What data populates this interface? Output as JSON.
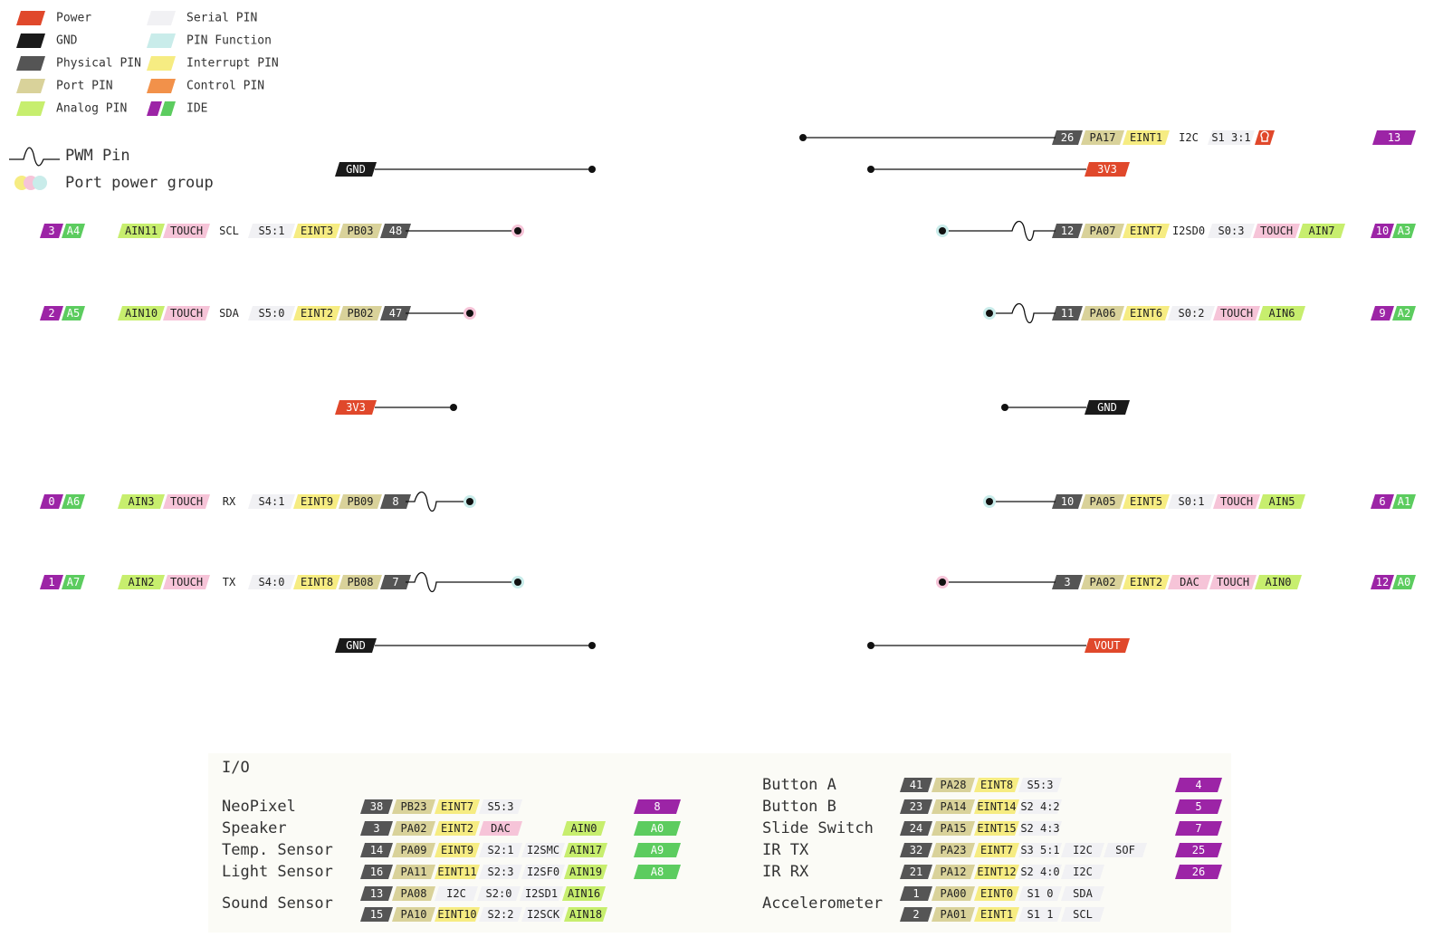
{
  "colors": {
    "power": "#e0482b",
    "gnd": "#1a1a1a",
    "physical": "#555555",
    "port": "#d9d29a",
    "analog": "#c7ee6e",
    "serial": "#f1f1f4",
    "pinfunc": "#c9ecea",
    "interrupt": "#f6ec82",
    "control": "#f2914a",
    "ide_purple": "#9c24a6",
    "ide_green": "#5ccc5f",
    "touch": "#f6c4d8",
    "dac": "#f6c4d8",
    "line": "#111111"
  },
  "legend": {
    "items": [
      {
        "label": "Power",
        "color": "power"
      },
      {
        "label": "GND",
        "color": "gnd"
      },
      {
        "label": "Physical PIN",
        "color": "physical"
      },
      {
        "label": "Port PIN",
        "color": "port"
      },
      {
        "label": "Analog PIN",
        "color": "analog"
      },
      {
        "label": "Serial PIN",
        "color": "serial"
      },
      {
        "label": "PIN Function",
        "color": "pinfunc"
      },
      {
        "label": "Interrupt PIN",
        "color": "interrupt"
      },
      {
        "label": "Control PIN",
        "color": "control"
      },
      {
        "label": "IDE",
        "color": "ide"
      }
    ],
    "pwm_label": "PWM Pin",
    "group_label": "Port power group"
  },
  "left_pins": [
    {
      "type": "gnd",
      "label": "GND"
    },
    {
      "type": "pin",
      "pwm": false,
      "end": "pink",
      "cells": [
        {
          "t": "ide_purple",
          "v": "3"
        },
        {
          "t": "ide_green",
          "v": "A4"
        },
        {
          "t": "analog",
          "v": "AIN11"
        },
        {
          "t": "touch",
          "v": "TOUCH"
        },
        {
          "t": "text",
          "v": "SCL"
        },
        {
          "t": "serial",
          "v": "S5:1"
        },
        {
          "t": "interrupt",
          "v": "EINT3"
        },
        {
          "t": "port",
          "v": "PB03"
        },
        {
          "t": "physical",
          "v": "48"
        }
      ]
    },
    {
      "type": "pin",
      "pwm": false,
      "end": "pink",
      "cells": [
        {
          "t": "ide_purple",
          "v": "2"
        },
        {
          "t": "ide_green",
          "v": "A5"
        },
        {
          "t": "analog",
          "v": "AIN10"
        },
        {
          "t": "touch",
          "v": "TOUCH"
        },
        {
          "t": "text",
          "v": "SDA"
        },
        {
          "t": "serial",
          "v": "S5:0"
        },
        {
          "t": "interrupt",
          "v": "EINT2"
        },
        {
          "t": "port",
          "v": "PB02"
        },
        {
          "t": "physical",
          "v": "47"
        }
      ]
    },
    {
      "type": "power",
      "label": "3V3"
    },
    {
      "type": "pin",
      "pwm": true,
      "end": "teal",
      "cells": [
        {
          "t": "ide_purple",
          "v": "0"
        },
        {
          "t": "ide_green",
          "v": "A6"
        },
        {
          "t": "analog",
          "v": "AIN3"
        },
        {
          "t": "touch",
          "v": "TOUCH"
        },
        {
          "t": "text",
          "v": "RX"
        },
        {
          "t": "serial",
          "v": "S4:1"
        },
        {
          "t": "interrupt",
          "v": "EINT9"
        },
        {
          "t": "port",
          "v": "PB09"
        },
        {
          "t": "physical",
          "v": "8"
        }
      ]
    },
    {
      "type": "pin",
      "pwm": true,
      "end": "teal",
      "cells": [
        {
          "t": "ide_purple",
          "v": "1"
        },
        {
          "t": "ide_green",
          "v": "A7"
        },
        {
          "t": "analog",
          "v": "AIN2"
        },
        {
          "t": "touch",
          "v": "TOUCH"
        },
        {
          "t": "text",
          "v": "TX"
        },
        {
          "t": "serial",
          "v": "S4:0"
        },
        {
          "t": "interrupt",
          "v": "EINT8"
        },
        {
          "t": "port",
          "v": "PB08"
        },
        {
          "t": "physical",
          "v": "7"
        }
      ]
    },
    {
      "type": "gnd",
      "label": "GND"
    }
  ],
  "right_pins": [
    {
      "type": "pin",
      "pwm": false,
      "end": "none",
      "cells": [
        {
          "t": "physical",
          "v": "26"
        },
        {
          "t": "port",
          "v": "PA17"
        },
        {
          "t": "interrupt",
          "v": "EINT1"
        },
        {
          "t": "text",
          "v": "I2C"
        },
        {
          "t": "serial",
          "v": "S1 3:1"
        },
        {
          "t": "led",
          "v": ""
        }
      ],
      "ide": [
        {
          "t": "ide_purple",
          "v": "13"
        }
      ]
    },
    {
      "type": "power",
      "label": "3V3"
    },
    {
      "type": "pin",
      "pwm": true,
      "end": "teal",
      "cells": [
        {
          "t": "physical",
          "v": "12"
        },
        {
          "t": "port",
          "v": "PA07"
        },
        {
          "t": "interrupt",
          "v": "EINT7"
        },
        {
          "t": "text",
          "v": "I2SD0"
        },
        {
          "t": "serial",
          "v": "S0:3"
        },
        {
          "t": "touch",
          "v": "TOUCH"
        },
        {
          "t": "analog",
          "v": "AIN7"
        }
      ],
      "ide": [
        {
          "t": "ide_purple",
          "v": "10"
        },
        {
          "t": "ide_green",
          "v": "A3"
        }
      ]
    },
    {
      "type": "pin",
      "pwm": true,
      "end": "teal",
      "cells": [
        {
          "t": "physical",
          "v": "11"
        },
        {
          "t": "port",
          "v": "PA06"
        },
        {
          "t": "interrupt",
          "v": "EINT6"
        },
        {
          "t": "serial",
          "v": "S0:2"
        },
        {
          "t": "touch",
          "v": "TOUCH"
        },
        {
          "t": "analog",
          "v": "AIN6"
        }
      ],
      "ide": [
        {
          "t": "ide_purple",
          "v": "9"
        },
        {
          "t": "ide_green",
          "v": "A2"
        }
      ]
    },
    {
      "type": "gnd",
      "label": "GND"
    },
    {
      "type": "pin",
      "pwm": false,
      "end": "teal",
      "cells": [
        {
          "t": "physical",
          "v": "10"
        },
        {
          "t": "port",
          "v": "PA05"
        },
        {
          "t": "interrupt",
          "v": "EINT5"
        },
        {
          "t": "serial",
          "v": "S0:1"
        },
        {
          "t": "touch",
          "v": "TOUCH"
        },
        {
          "t": "analog",
          "v": "AIN5"
        }
      ],
      "ide": [
        {
          "t": "ide_purple",
          "v": "6"
        },
        {
          "t": "ide_green",
          "v": "A1"
        }
      ]
    },
    {
      "type": "pin",
      "pwm": false,
      "end": "pink",
      "cells": [
        {
          "t": "physical",
          "v": "3"
        },
        {
          "t": "port",
          "v": "PA02"
        },
        {
          "t": "interrupt",
          "v": "EINT2"
        },
        {
          "t": "dac",
          "v": "DAC"
        },
        {
          "t": "touch",
          "v": "TOUCH"
        },
        {
          "t": "analog",
          "v": "AIN0"
        }
      ],
      "ide": [
        {
          "t": "ide_purple",
          "v": "12"
        },
        {
          "t": "ide_green",
          "v": "A0"
        }
      ]
    },
    {
      "type": "power",
      "label": "VOUT"
    }
  ],
  "io": {
    "title": "I/O",
    "left": [
      {
        "name": "NeoPixel",
        "rows": [
          [
            {
              "t": "physical",
              "v": "38"
            },
            {
              "t": "port",
              "v": "PB23"
            },
            {
              "t": "interrupt",
              "v": "EINT7"
            },
            {
              "t": "serial",
              "v": "S5:3"
            }
          ]
        ],
        "ide": [
          {
            "t": "ide_purple",
            "v": "8"
          }
        ]
      },
      {
        "name": "Speaker",
        "rows": [
          [
            {
              "t": "physical",
              "v": "3"
            },
            {
              "t": "port",
              "v": "PA02"
            },
            {
              "t": "interrupt",
              "v": "EINT2"
            },
            {
              "t": "dac",
              "v": "DAC"
            },
            {
              "t": "blank",
              "v": ""
            },
            {
              "t": "analog",
              "v": "AIN0"
            }
          ]
        ],
        "ide": [
          {
            "t": "ide_green",
            "v": "A0"
          }
        ]
      },
      {
        "name": "Temp. Sensor",
        "rows": [
          [
            {
              "t": "physical",
              "v": "14"
            },
            {
              "t": "port",
              "v": "PA09"
            },
            {
              "t": "interrupt",
              "v": "EINT9"
            },
            {
              "t": "serial",
              "v": "S2:1"
            },
            {
              "t": "serial",
              "v": "I2SMC"
            },
            {
              "t": "analog",
              "v": "AIN17"
            }
          ]
        ],
        "ide": [
          {
            "t": "ide_green",
            "v": "A9"
          }
        ]
      },
      {
        "name": "Light Sensor",
        "rows": [
          [
            {
              "t": "physical",
              "v": "16"
            },
            {
              "t": "port",
              "v": "PA11"
            },
            {
              "t": "interrupt",
              "v": "EINT11"
            },
            {
              "t": "serial",
              "v": "S2:3"
            },
            {
              "t": "serial",
              "v": "I2SF0"
            },
            {
              "t": "analog",
              "v": "AIN19"
            }
          ]
        ],
        "ide": [
          {
            "t": "ide_green",
            "v": "A8"
          }
        ]
      },
      {
        "name": "Sound Sensor",
        "rows": [
          [
            {
              "t": "physical",
              "v": "13"
            },
            {
              "t": "port",
              "v": "PA08"
            },
            {
              "t": "serial",
              "v": "I2C"
            },
            {
              "t": "serial",
              "v": "S2:0"
            },
            {
              "t": "serial",
              "v": "I2SD1"
            },
            {
              "t": "analog",
              "v": "AIN16"
            }
          ],
          [
            {
              "t": "physical",
              "v": "15"
            },
            {
              "t": "port",
              "v": "PA10"
            },
            {
              "t": "interrupt",
              "v": "EINT10"
            },
            {
              "t": "serial",
              "v": "S2:2"
            },
            {
              "t": "serial",
              "v": "I2SCK"
            },
            {
              "t": "analog",
              "v": "AIN18"
            }
          ]
        ],
        "ide": []
      }
    ],
    "right": [
      {
        "name": "Button A",
        "rows": [
          [
            {
              "t": "physical",
              "v": "41"
            },
            {
              "t": "port",
              "v": "PA28"
            },
            {
              "t": "interrupt",
              "v": "EINT8"
            },
            {
              "t": "serial",
              "v": "S5:3"
            }
          ]
        ],
        "ide": [
          {
            "t": "ide_purple",
            "v": "4"
          }
        ]
      },
      {
        "name": "Button B",
        "rows": [
          [
            {
              "t": "physical",
              "v": "23"
            },
            {
              "t": "port",
              "v": "PA14"
            },
            {
              "t": "interrupt",
              "v": "EINT14"
            },
            {
              "t": "serial",
              "v": "S2 4:2"
            }
          ]
        ],
        "ide": [
          {
            "t": "ide_purple",
            "v": "5"
          }
        ]
      },
      {
        "name": "Slide Switch",
        "rows": [
          [
            {
              "t": "physical",
              "v": "24"
            },
            {
              "t": "port",
              "v": "PA15"
            },
            {
              "t": "interrupt",
              "v": "EINT15"
            },
            {
              "t": "serial",
              "v": "S2 4:3"
            }
          ]
        ],
        "ide": [
          {
            "t": "ide_purple",
            "v": "7"
          }
        ]
      },
      {
        "name": "IR TX",
        "rows": [
          [
            {
              "t": "physical",
              "v": "32"
            },
            {
              "t": "port",
              "v": "PA23"
            },
            {
              "t": "interrupt",
              "v": "EINT7"
            },
            {
              "t": "serial",
              "v": "S3 5:1"
            },
            {
              "t": "serial",
              "v": "I2C"
            },
            {
              "t": "serial",
              "v": "SOF"
            }
          ]
        ],
        "ide": [
          {
            "t": "ide_purple",
            "v": "25"
          }
        ]
      },
      {
        "name": "IR RX",
        "rows": [
          [
            {
              "t": "physical",
              "v": "21"
            },
            {
              "t": "port",
              "v": "PA12"
            },
            {
              "t": "interrupt",
              "v": "EINT12"
            },
            {
              "t": "serial",
              "v": "S2 4:0"
            },
            {
              "t": "serial",
              "v": "I2C"
            }
          ]
        ],
        "ide": [
          {
            "t": "ide_purple",
            "v": "26"
          }
        ]
      },
      {
        "name": "Accelerometer",
        "rows": [
          [
            {
              "t": "physical",
              "v": "1"
            },
            {
              "t": "port",
              "v": "PA00"
            },
            {
              "t": "interrupt",
              "v": "EINT0"
            },
            {
              "t": "serial",
              "v": "S1 0"
            },
            {
              "t": "serial",
              "v": "SDA"
            }
          ],
          [
            {
              "t": "physical",
              "v": "2"
            },
            {
              "t": "port",
              "v": "PA01"
            },
            {
              "t": "interrupt",
              "v": "EINT1"
            },
            {
              "t": "serial",
              "v": "S1 1"
            },
            {
              "t": "serial",
              "v": "SCL"
            }
          ]
        ],
        "ide": []
      }
    ]
  }
}
